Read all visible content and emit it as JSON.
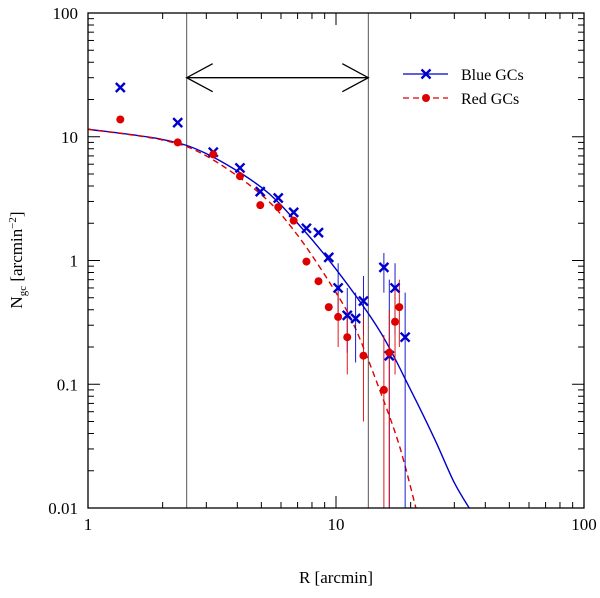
{
  "chart_data": {
    "type": "scatter",
    "title": "",
    "xlabel": "R [arcmin]",
    "ylabel": {
      "base": "N",
      "sub": "gc",
      "unit_open": " [arcmin",
      "sup": "−2",
      "unit_close": "]"
    },
    "xscale": "log",
    "yscale": "log",
    "xlim": [
      1,
      100
    ],
    "ylim": [
      0.01,
      100
    ],
    "x_ticks": [
      "1",
      "10",
      "100"
    ],
    "y_ticks": [
      "0.01",
      "0.1",
      "1",
      "10",
      "100"
    ],
    "legend": {
      "placement": "top-right",
      "entries": [
        "Blue GCs",
        "Red GCs"
      ]
    },
    "vertical_lines_x": [
      2.5,
      13.5
    ],
    "arrow_range": {
      "from": 2.5,
      "to": 13.5,
      "y": 30
    },
    "colors": {
      "blue": "#0000cc",
      "red": "#dd0000",
      "axis": "#000000",
      "guide": "#555555"
    },
    "series": [
      {
        "name": "Blue GCs",
        "marker": "cross",
        "color": "#0000cc",
        "points": [
          {
            "x": 1.35,
            "y": 25
          },
          {
            "x": 2.3,
            "y": 13
          },
          {
            "x": 3.2,
            "y": 7.5
          },
          {
            "x": 4.1,
            "y": 5.6
          },
          {
            "x": 4.95,
            "y": 3.6
          },
          {
            "x": 5.85,
            "y": 3.2
          },
          {
            "x": 6.75,
            "y": 2.45
          },
          {
            "x": 7.6,
            "y": 1.82
          },
          {
            "x": 8.5,
            "y": 1.68
          },
          {
            "x": 9.35,
            "y": 1.06
          },
          {
            "x": 10.2,
            "y": 0.6,
            "err": [
              0.35,
              0.95
            ]
          },
          {
            "x": 11.1,
            "y": 0.36,
            "err": [
              0.18,
              0.6
            ]
          },
          {
            "x": 12.0,
            "y": 0.34,
            "err": [
              0.15,
              0.55
            ]
          },
          {
            "x": 12.9,
            "y": 0.47,
            "err": [
              0.25,
              0.75
            ]
          },
          {
            "x": 15.6,
            "y": 0.88,
            "err": [
              0.55,
              1.15
            ]
          },
          {
            "x": 16.4,
            "y": 0.17,
            "err": [
              0.01,
              0.7
            ]
          },
          {
            "x": 17.3,
            "y": 0.6,
            "err": [
              0.25,
              0.95
            ]
          },
          {
            "x": 19.0,
            "y": 0.24,
            "err": [
              0.01,
              0.55
            ]
          }
        ],
        "fit": {
          "style": "solid",
          "x": [
            1,
            2,
            3,
            5,
            7,
            10,
            15,
            20,
            25,
            30,
            35
          ],
          "y": [
            11.5,
            9.5,
            7.3,
            3.9,
            2.0,
            0.85,
            0.27,
            0.09,
            0.036,
            0.016,
            0.0095
          ]
        }
      },
      {
        "name": "Red GCs",
        "marker": "dot",
        "color": "#dd0000",
        "points": [
          {
            "x": 1.35,
            "y": 13.8
          },
          {
            "x": 2.3,
            "y": 9.0
          },
          {
            "x": 3.2,
            "y": 7.2
          },
          {
            "x": 4.1,
            "y": 4.8
          },
          {
            "x": 4.95,
            "y": 2.8
          },
          {
            "x": 5.85,
            "y": 2.7
          },
          {
            "x": 6.75,
            "y": 2.1
          },
          {
            "x": 7.6,
            "y": 0.98
          },
          {
            "x": 8.5,
            "y": 0.68
          },
          {
            "x": 9.35,
            "y": 0.42
          },
          {
            "x": 10.2,
            "y": 0.35,
            "err": [
              0.2,
              0.55
            ]
          },
          {
            "x": 11.1,
            "y": 0.24,
            "err": [
              0.12,
              0.4
            ]
          },
          {
            "x": 12.9,
            "y": 0.17,
            "err": [
              0.05,
              0.35
            ]
          },
          {
            "x": 15.6,
            "y": 0.09,
            "err": [
              0.01,
              0.25
            ]
          },
          {
            "x": 16.4,
            "y": 0.18,
            "err": [
              0.01,
              0.4
            ]
          },
          {
            "x": 17.3,
            "y": 0.32,
            "err": [
              0.12,
              0.6
            ]
          },
          {
            "x": 18.0,
            "y": 0.42,
            "err": [
              0.2,
              0.7
            ]
          }
        ],
        "fit": {
          "style": "dashed",
          "x": [
            1,
            2,
            3,
            5,
            7,
            10,
            12,
            15,
            18,
            21
          ],
          "y": [
            11.5,
            9.4,
            7.0,
            3.4,
            1.6,
            0.55,
            0.28,
            0.09,
            0.032,
            0.01
          ]
        }
      }
    ]
  }
}
